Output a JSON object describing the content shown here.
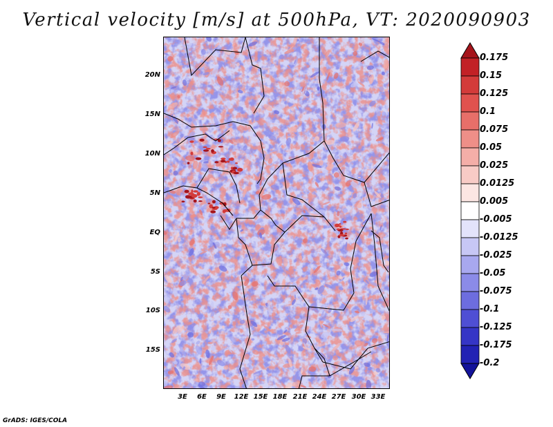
{
  "title": "Vertical velocity [m/s] at 500hPa, VT: 2020090903",
  "credit": "GrADS: IGES/COLA",
  "map": {
    "field": "Vertical velocity",
    "units": "m/s",
    "level": "500hPa",
    "valid_time": "2020090903",
    "lat_labels": [
      "20N",
      "15N",
      "10N",
      "5N",
      "EQ",
      "5S",
      "10S",
      "15S"
    ],
    "lon_labels": [
      "3E",
      "6E",
      "9E",
      "12E",
      "15E",
      "18E",
      "21E",
      "24E",
      "27E",
      "30E",
      "33E"
    ]
  },
  "colorbar": {
    "levels": [
      "0.175",
      "0.15",
      "0.125",
      "0.1",
      "0.075",
      "0.05",
      "0.025",
      "0.0125",
      "0.005",
      "-0.005",
      "-0.0125",
      "-0.025",
      "-0.05",
      "-0.075",
      "-0.1",
      "-0.125",
      "-0.175",
      "-0.2"
    ],
    "colors": [
      "#a5141b",
      "#c22126",
      "#d33b3a",
      "#e0524e",
      "#e76f69",
      "#ee8f88",
      "#f4aea8",
      "#f8cbc6",
      "#fce6e3",
      "#ffffff",
      "#e3e3fb",
      "#c7c7f5",
      "#a8a8ef",
      "#8b8be8",
      "#6d6ddf",
      "#4f4fd4",
      "#3535c6",
      "#2222b4",
      "#13139a"
    ]
  }
}
